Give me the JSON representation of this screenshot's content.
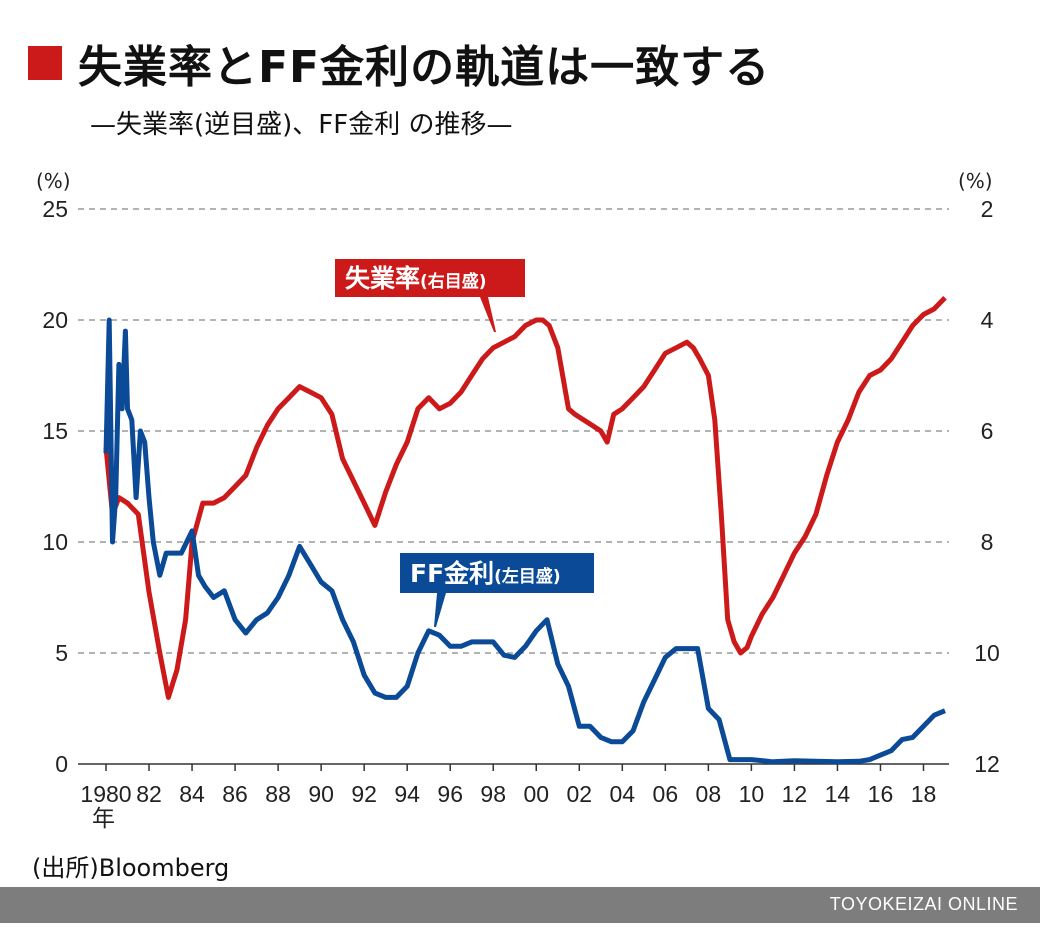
{
  "header": {
    "title": "失業率とFF金利の軌道は一致する",
    "subtitle": "—失業率(逆目盛)、FF金利 の推移—"
  },
  "source": "(出所)Bloomberg",
  "footer": {
    "brand": "TOYOKEIZAI ONLINE"
  },
  "colors": {
    "unemployment": "#cc1a1a",
    "ff_rate": "#0b4a96",
    "title_mark": "#cc1a1a",
    "footer_bar": "#7d7d7d"
  },
  "chart_data": {
    "type": "line",
    "title": "失業率とFF金利の軌道は一致する",
    "subtitle": "—失業率(逆目盛)、FF金利 の推移—",
    "left_axis": {
      "unit": "(%)",
      "ylim": [
        0,
        25
      ],
      "ticks": [
        0,
        5,
        10,
        15,
        20,
        25
      ],
      "tick_labels": [
        "0",
        "5",
        "10",
        "15",
        "20",
        "25"
      ]
    },
    "right_axis": {
      "unit": "(%)",
      "ylim": [
        12,
        2
      ],
      "inverted": true,
      "ticks": [
        12,
        10,
        8,
        6,
        4,
        2
      ],
      "tick_labels": [
        "12",
        "10",
        "8",
        "6",
        "4",
        "2"
      ]
    },
    "x_axis": {
      "range": [
        1980,
        2019
      ],
      "ticks": [
        1980,
        1982,
        1984,
        1986,
        1988,
        1990,
        1992,
        1994,
        1996,
        1998,
        2000,
        2002,
        2004,
        2006,
        2008,
        2010,
        2012,
        2014,
        2016,
        2018
      ],
      "tick_labels": [
        "1980",
        "82",
        "84",
        "86",
        "88",
        "90",
        "92",
        "94",
        "96",
        "98",
        "00",
        "02",
        "04",
        "06",
        "08",
        "10",
        "12",
        "14",
        "16",
        "18"
      ],
      "year_label": "年"
    },
    "grid": "horizontal dashed",
    "series": [
      {
        "name": "失業率",
        "callout_label": "失業率",
        "callout_sub": "(右目盛)",
        "axis": "right",
        "x": [
          1980.0,
          1980.3,
          1980.6,
          1981.0,
          1981.5,
          1982.0,
          1982.5,
          1982.9,
          1983.3,
          1983.7,
          1984.0,
          1984.5,
          1985.0,
          1985.5,
          1986.0,
          1986.5,
          1987.0,
          1987.5,
          1988.0,
          1988.5,
          1989.0,
          1989.5,
          1990.0,
          1990.5,
          1991.0,
          1991.5,
          1992.0,
          1992.5,
          1993.0,
          1993.5,
          1994.0,
          1994.5,
          1995.0,
          1995.5,
          1996.0,
          1996.5,
          1997.0,
          1997.5,
          1998.0,
          1998.5,
          1999.0,
          1999.5,
          2000.0,
          2000.3,
          2000.6,
          2001.0,
          2001.5,
          2001.8,
          2002.2,
          2002.6,
          2003.0,
          2003.3,
          2003.6,
          2004.0,
          2004.5,
          2005.0,
          2005.5,
          2006.0,
          2006.5,
          2007.0,
          2007.3,
          2007.6,
          2008.0,
          2008.3,
          2008.6,
          2008.9,
          2009.2,
          2009.5,
          2009.8,
          2010.0,
          2010.5,
          2011.0,
          2011.5,
          2012.0,
          2012.5,
          2013.0,
          2013.5,
          2014.0,
          2014.5,
          2015.0,
          2015.5,
          2016.0,
          2016.5,
          2017.0,
          2017.5,
          2018.0,
          2018.5,
          2019.0
        ],
        "values": [
          6.3,
          7.5,
          7.2,
          7.3,
          7.5,
          8.9,
          10.0,
          10.8,
          10.3,
          9.4,
          8.0,
          7.3,
          7.3,
          7.2,
          7.0,
          6.8,
          6.3,
          5.9,
          5.6,
          5.4,
          5.2,
          5.3,
          5.4,
          5.7,
          6.5,
          6.9,
          7.3,
          7.7,
          7.1,
          6.6,
          6.2,
          5.6,
          5.4,
          5.6,
          5.5,
          5.3,
          5.0,
          4.7,
          4.5,
          4.4,
          4.3,
          4.1,
          4.0,
          4.0,
          4.1,
          4.5,
          5.6,
          5.7,
          5.8,
          5.9,
          6.0,
          6.2,
          5.7,
          5.6,
          5.4,
          5.2,
          4.9,
          4.6,
          4.5,
          4.4,
          4.5,
          4.7,
          5.0,
          5.8,
          7.5,
          9.4,
          9.8,
          10.0,
          9.9,
          9.7,
          9.3,
          9.0,
          8.6,
          8.2,
          7.9,
          7.5,
          6.8,
          6.2,
          5.8,
          5.3,
          5.0,
          4.9,
          4.7,
          4.4,
          4.1,
          3.9,
          3.8,
          3.6
        ]
      },
      {
        "name": "FF金利",
        "callout_label": "FF金利",
        "callout_sub": "(左目盛)",
        "axis": "left",
        "x": [
          1980.0,
          1980.15,
          1980.3,
          1980.45,
          1980.6,
          1980.75,
          1980.9,
          1981.0,
          1981.2,
          1981.4,
          1981.6,
          1981.8,
          1982.0,
          1982.2,
          1982.5,
          1982.8,
          1983.0,
          1983.5,
          1984.0,
          1984.3,
          1984.6,
          1985.0,
          1985.5,
          1986.0,
          1986.5,
          1987.0,
          1987.5,
          1988.0,
          1988.5,
          1989.0,
          1989.5,
          1990.0,
          1990.5,
          1991.0,
          1991.5,
          1992.0,
          1992.5,
          1993.0,
          1993.5,
          1994.0,
          1994.5,
          1995.0,
          1995.5,
          1996.0,
          1996.5,
          1997.0,
          1997.5,
          1998.0,
          1998.5,
          1999.0,
          1999.5,
          2000.0,
          2000.5,
          2001.0,
          2001.5,
          2002.0,
          2002.5,
          2003.0,
          2003.5,
          2004.0,
          2004.5,
          2005.0,
          2005.5,
          2006.0,
          2006.5,
          2007.0,
          2007.5,
          2008.0,
          2008.5,
          2009.0,
          2010.0,
          2011.0,
          2012.0,
          2013.0,
          2014.0,
          2015.0,
          2015.5,
          2016.0,
          2016.5,
          2017.0,
          2017.5,
          2018.0,
          2018.5,
          2019.0
        ],
        "values": [
          14.0,
          20.0,
          10.0,
          12.0,
          18.0,
          16.0,
          19.5,
          16.0,
          15.5,
          12.0,
          15.0,
          14.5,
          12.0,
          10.0,
          8.5,
          9.5,
          9.5,
          9.5,
          10.5,
          8.5,
          8.0,
          7.5,
          7.8,
          6.5,
          5.9,
          6.5,
          6.8,
          7.5,
          8.5,
          9.8,
          9.0,
          8.2,
          7.8,
          6.5,
          5.5,
          4.0,
          3.2,
          3.0,
          3.0,
          3.5,
          5.0,
          6.0,
          5.8,
          5.3,
          5.3,
          5.5,
          5.5,
          5.5,
          4.9,
          4.8,
          5.3,
          6.0,
          6.5,
          4.5,
          3.5,
          1.7,
          1.7,
          1.2,
          1.0,
          1.0,
          1.5,
          2.8,
          3.8,
          4.8,
          5.2,
          5.2,
          5.2,
          2.5,
          2.0,
          0.2,
          0.2,
          0.1,
          0.15,
          0.12,
          0.1,
          0.12,
          0.2,
          0.4,
          0.6,
          1.1,
          1.2,
          1.7,
          2.2,
          2.4
        ]
      }
    ]
  }
}
